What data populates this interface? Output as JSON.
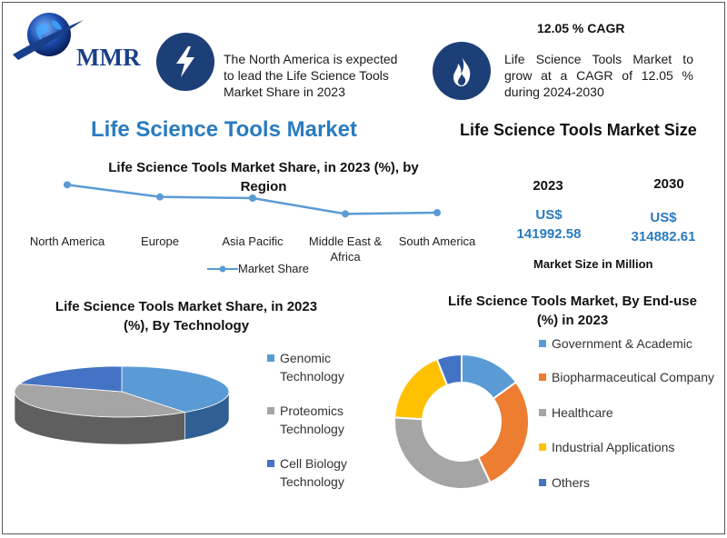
{
  "brand": {
    "logo_text": "MMR"
  },
  "info": {
    "north_america_text": "The North America is expected to lead the Life Science Tools Market Share in 2023",
    "cagr_title": "12.05 % CAGR",
    "cagr_text": "Life Science Tools Market to grow at a CAGR of 12.05 % during 2024-2030"
  },
  "main_title": "Life Science Tools Market",
  "market_size": {
    "title": "Life Science Tools Market Size",
    "year_a": "2023",
    "value_a_currency": "US$",
    "value_a": "141992.58",
    "year_b": "2030",
    "value_b_currency": "US$",
    "value_b": "314882.61",
    "unit_label": "Market Size in Million"
  },
  "colors": {
    "line": "#5b9bd5",
    "blue_dark": "#4472c4",
    "blue_light": "#5b9bd5",
    "orange": "#ed7d31",
    "gray": "#a5a5a5",
    "yellow": "#ffc000",
    "icon_circle": "#1d3f78"
  },
  "chart_data": [
    {
      "type": "line",
      "title": "Life Science Tools Market Share, in 2023 (%), by Region",
      "categories": [
        "North America",
        "Europe",
        "Asia Pacific",
        "Middle East & Africa",
        "South America"
      ],
      "series": [
        {
          "name": "Market Share",
          "values": [
            38,
            28,
            27,
            14,
            15
          ]
        }
      ],
      "ylim": [
        0,
        45
      ],
      "grid": false,
      "legend": "bottom"
    },
    {
      "type": "pie",
      "title": "Life Science Tools Market Share, in 2023 (%), By Technology",
      "labels": [
        "Genomic Technology",
        "Proteomics Technology",
        "Cell Biology Technology"
      ],
      "values": [
        40,
        40,
        20
      ],
      "legend": "right"
    },
    {
      "type": "pie",
      "title": "Life Science Tools Market, By End-use (%) in 2023",
      "labels": [
        "Government & Academic",
        "Biopharmaceutical Company",
        "Healthcare",
        "Industrial Applications",
        "Others"
      ],
      "values": [
        15,
        28,
        33,
        18,
        6
      ],
      "legend": "right"
    }
  ]
}
